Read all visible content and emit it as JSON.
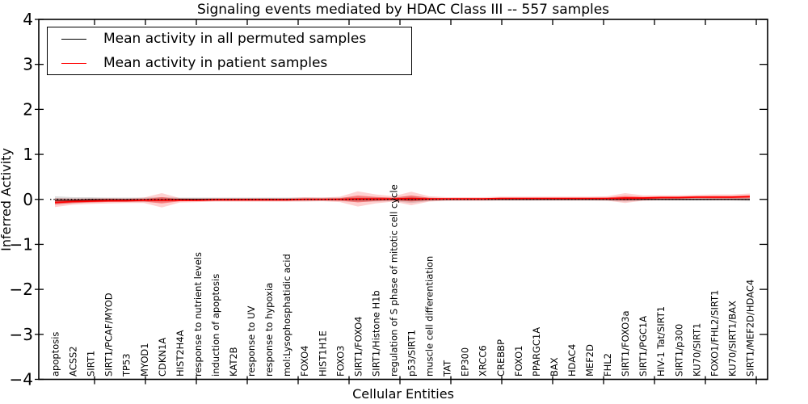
{
  "chart_data": {
    "type": "line",
    "title": "Signaling events mediated by HDAC Class III -- 557 samples",
    "xlabel": "Cellular Entities",
    "ylabel": "Inferred Activity",
    "ylim": [
      -4,
      4
    ],
    "yticks": [
      -4,
      -3,
      -2,
      -1,
      0,
      1,
      2,
      3,
      4
    ],
    "grid": false,
    "legend_position": "upper left",
    "zero_line": {
      "y": 0,
      "style": "dotted",
      "color": "#000000"
    },
    "categories": [
      "apoptosis",
      "ACSS2",
      "SIRT1",
      "SIRT1/PCAF/MYOD",
      "TP53",
      "MYOD1",
      "CDKN1A",
      "HIST2H4A",
      "response to nutrient levels",
      "induction of apoptosis",
      "KAT2B",
      "response to UV",
      "response to hypoxia",
      "mol:Lysophosphatidic acid",
      "FOXO4",
      "HIST1H1E",
      "FOXO3",
      "SIRT1/FOXO4",
      "SIRT1/Histone H1b",
      "regulation of S phase of mitotic cell cycle",
      "p53/SIRT1",
      "muscle cell differentiation",
      "TAT",
      "EP300",
      "XRCC6",
      "CREBBP",
      "FOXO1",
      "PPARGC1A",
      "BAX",
      "HDAC4",
      "MEF2D",
      "FHL2",
      "SIRT1/FOXO3a",
      "SIRT1/PGC1A",
      "HIV-1 Tat/SIRT1",
      "SIRT1/p300",
      "KU70/SIRT1",
      "FOXO1/FHL2/SIRT1",
      "KU70/SIRT1/BAX",
      "SIRT1/MEF2D/HDAC4"
    ],
    "series": [
      {
        "name": "Mean activity in all permuted samples",
        "color": "#000000",
        "band_color": "#000000",
        "values": [
          -0.02,
          -0.02,
          -0.01,
          -0.01,
          -0.01,
          -0.01,
          -0.01,
          0,
          0,
          0,
          0,
          0,
          0,
          0,
          0,
          0,
          0,
          0,
          0,
          0,
          0,
          0,
          0,
          0,
          0,
          0,
          0,
          0,
          0,
          0,
          0,
          0,
          0,
          0,
          0,
          0,
          0,
          0,
          0,
          0
        ],
        "band_halfwidth": [
          0.09,
          0.07,
          0.06,
          0.05,
          0.05,
          0.05,
          0.06,
          0.04,
          0.04,
          0.04,
          0.04,
          0.04,
          0.04,
          0.04,
          0.04,
          0.04,
          0.04,
          0.06,
          0.05,
          0.04,
          0.08,
          0.04,
          0.03,
          0.03,
          0.03,
          0.03,
          0.03,
          0.03,
          0.03,
          0.03,
          0.03,
          0.03,
          0.05,
          0.03,
          0.03,
          0.03,
          0.03,
          0.03,
          0.03,
          0.04
        ]
      },
      {
        "name": "Mean activity in patient samples",
        "color": "#ff0000",
        "band_color": "#ff0000",
        "values": [
          -0.07,
          -0.05,
          -0.04,
          -0.03,
          -0.03,
          -0.02,
          -0.02,
          -0.02,
          -0.02,
          -0.01,
          -0.01,
          -0.01,
          -0.01,
          -0.01,
          0.0,
          0.0,
          0.0,
          0.01,
          0.01,
          0.01,
          0.02,
          0.01,
          0.01,
          0.01,
          0.01,
          0.02,
          0.02,
          0.02,
          0.02,
          0.02,
          0.02,
          0.02,
          0.03,
          0.03,
          0.04,
          0.04,
          0.05,
          0.05,
          0.05,
          0.06
        ],
        "band_halfwidth": [
          0.1,
          0.07,
          0.06,
          0.06,
          0.05,
          0.06,
          0.16,
          0.05,
          0.04,
          0.04,
          0.04,
          0.04,
          0.04,
          0.04,
          0.05,
          0.04,
          0.06,
          0.17,
          0.1,
          0.06,
          0.15,
          0.06,
          0.04,
          0.04,
          0.04,
          0.04,
          0.04,
          0.04,
          0.04,
          0.04,
          0.04,
          0.05,
          0.11,
          0.06,
          0.05,
          0.05,
          0.05,
          0.06,
          0.06,
          0.07
        ]
      }
    ],
    "legend": [
      {
        "label": "Mean activity in all permuted samples",
        "color": "#000000"
      },
      {
        "label": "Mean activity in patient samples",
        "color": "#ff0000"
      }
    ]
  }
}
